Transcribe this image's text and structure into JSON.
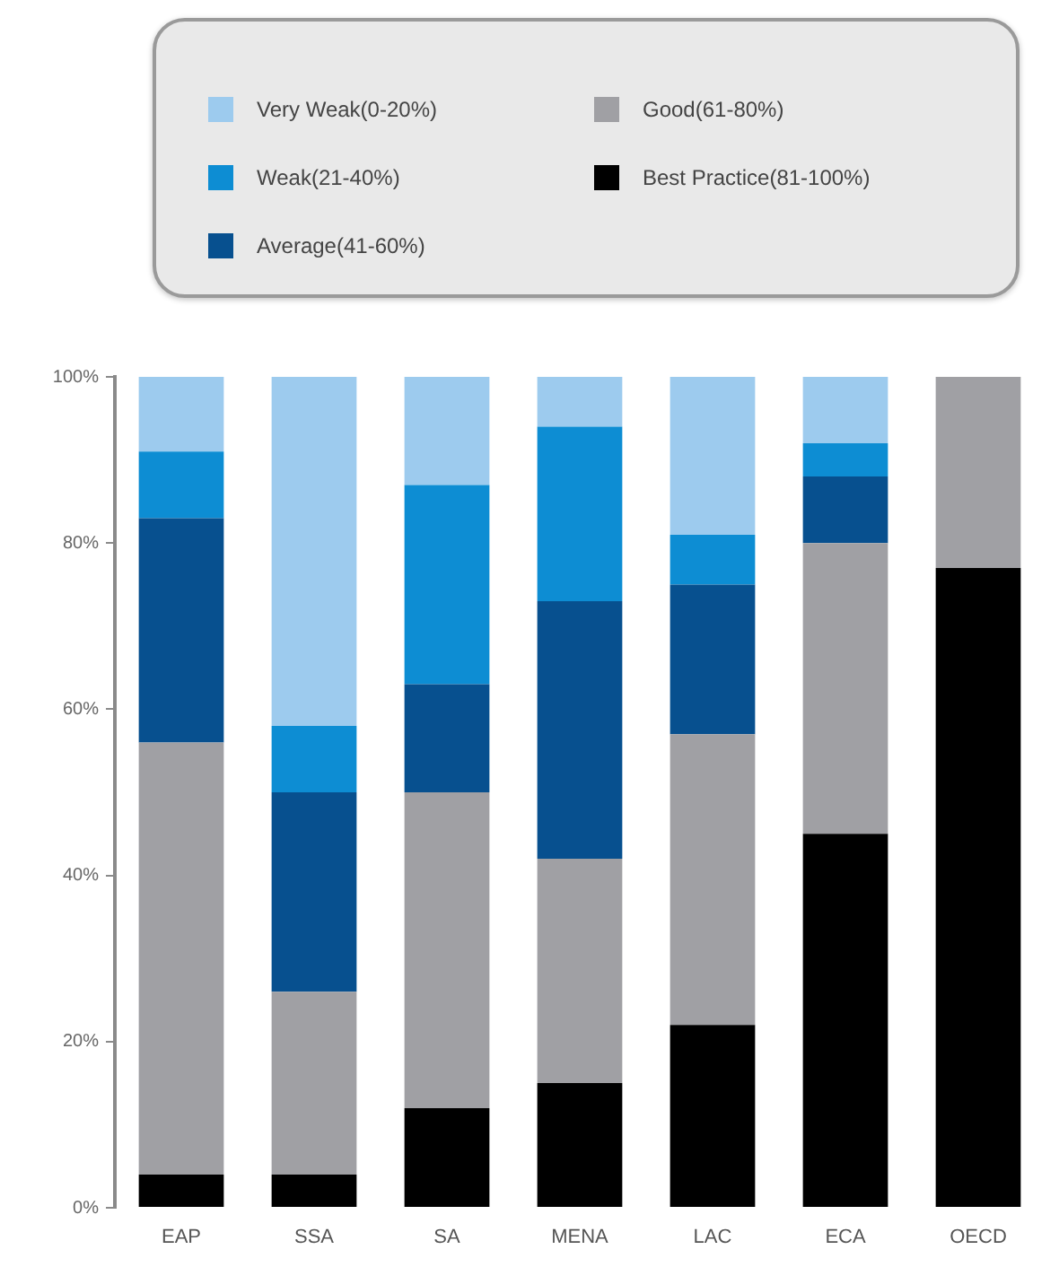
{
  "chart_data": {
    "type": "bar",
    "stacked": true,
    "categories": [
      "EAP",
      "SSA",
      "SA",
      "MENA",
      "LAC",
      "ECA",
      "OECD"
    ],
    "series": [
      {
        "name": "Best Practice(81-100%)",
        "color": "#000000",
        "values": [
          4,
          4,
          12,
          15,
          22,
          45,
          77
        ]
      },
      {
        "name": "Good(61-80%)",
        "color": "#a0a0a4",
        "values": [
          52,
          22,
          38,
          27,
          35,
          35,
          23
        ]
      },
      {
        "name": "Average(41-60%)",
        "color": "#07508f",
        "values": [
          27,
          24,
          13,
          31,
          18,
          8,
          0
        ]
      },
      {
        "name": "Weak(21-40%)",
        "color": "#0d8dd3",
        "values": [
          8,
          8,
          24,
          21,
          6,
          4,
          0
        ]
      },
      {
        "name": "Very Weak(0-20%)",
        "color": "#9dcbee",
        "values": [
          9,
          42,
          13,
          6,
          19,
          8,
          0
        ]
      }
    ],
    "ylim": [
      0,
      100
    ],
    "yticks": [
      {
        "value": 0,
        "label": "0%"
      },
      {
        "value": 20,
        "label": "20%"
      },
      {
        "value": 40,
        "label": "40%"
      },
      {
        "value": 60,
        "label": "60%"
      },
      {
        "value": 80,
        "label": "80%"
      },
      {
        "value": 100,
        "label": "100%"
      }
    ],
    "grid": false,
    "legend": "top"
  }
}
